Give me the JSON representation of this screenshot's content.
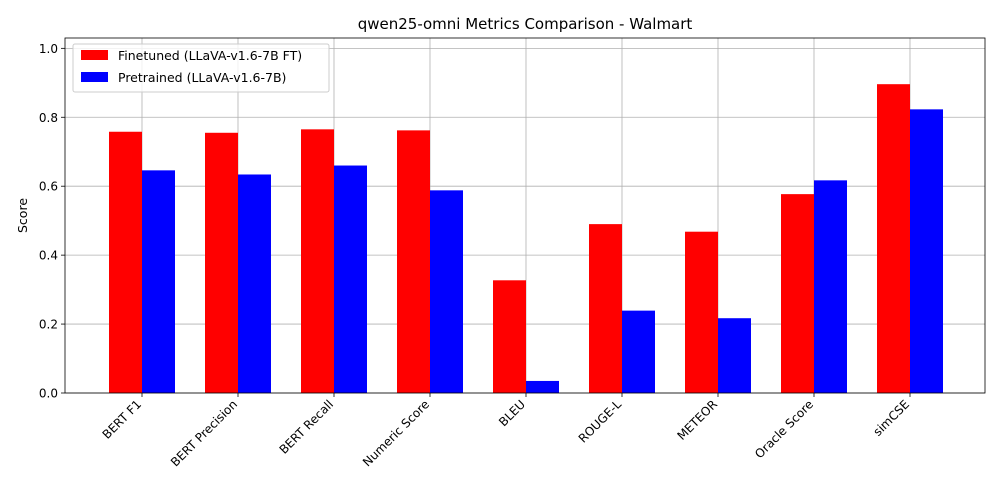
{
  "chart_data": {
    "type": "bar",
    "title": "qwen25-omni Metrics Comparison - Walmart",
    "xlabel": "",
    "ylabel": "Score",
    "ylim": [
      0,
      1.03
    ],
    "yticks": [
      "0.0",
      "0.2",
      "0.4",
      "0.6",
      "0.8",
      "1.0"
    ],
    "grid": true,
    "legend_position": "top-left",
    "categories": [
      "BERT F1",
      "BERT Precision",
      "BERT Recall",
      "Numeric Score",
      "BLEU",
      "ROUGE-L",
      "METEOR",
      "Oracle Score",
      "simCSE"
    ],
    "series": [
      {
        "name": "Finetuned (LLaVA-v1.6-7B FT)",
        "color": "#ff0000",
        "values": [
          0.758,
          0.755,
          0.765,
          0.762,
          0.327,
          0.49,
          0.468,
          0.577,
          0.896
        ]
      },
      {
        "name": "Pretrained (LLaVA-v1.6-7B)",
        "color": "#0000ff",
        "values": [
          0.646,
          0.634,
          0.66,
          0.588,
          0.035,
          0.239,
          0.217,
          0.617,
          0.823
        ]
      }
    ]
  }
}
